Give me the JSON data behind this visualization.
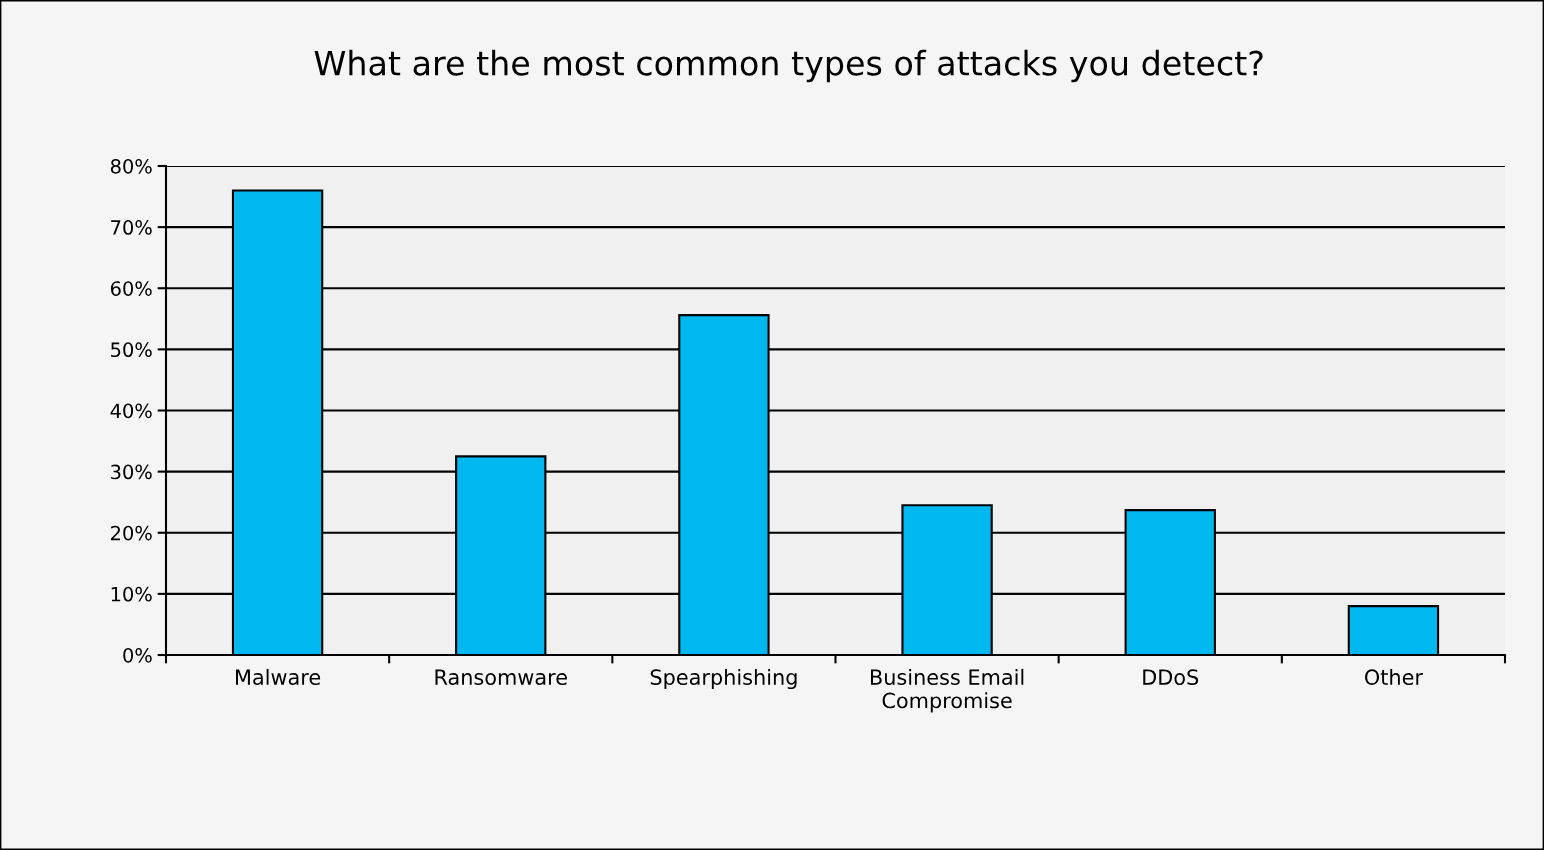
{
  "chart_data": {
    "type": "bar",
    "title": "What are the most common types of attacks you detect?",
    "categories": [
      "Malware",
      "Ransomware",
      "Spearphishing",
      "Business Email\nCompromise",
      "DDoS",
      "Other"
    ],
    "values": [
      76,
      32.5,
      55.6,
      24.5,
      23.7,
      8
    ],
    "color": "#00b8f0",
    "ylim": [
      0,
      80
    ],
    "yticks": [
      {
        "value": 0,
        "label": "0%"
      },
      {
        "value": 10,
        "label": "10%"
      },
      {
        "value": 20,
        "label": "20%"
      },
      {
        "value": 30,
        "label": "30%"
      },
      {
        "value": 40,
        "label": "40%"
      },
      {
        "value": 50,
        "label": "50%"
      },
      {
        "value": 60,
        "label": "60%"
      },
      {
        "value": 70,
        "label": "70%"
      },
      {
        "value": 80,
        "label": "80%"
      }
    ],
    "grid": "y"
  }
}
